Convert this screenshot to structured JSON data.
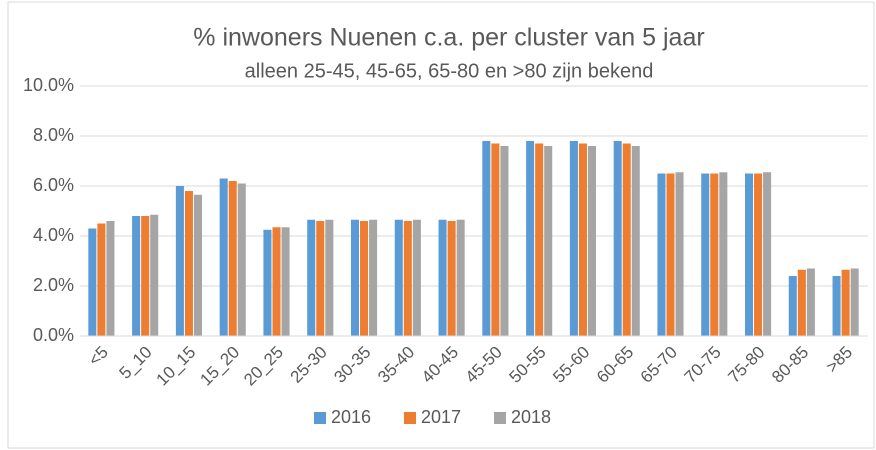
{
  "chart_data": {
    "type": "bar",
    "title": "% inwoners Nuenen c.a. per cluster van 5 jaar",
    "subtitle": "alleen 25-45, 45-65, 65-80 en >80 zijn bekend",
    "categories": [
      "<5",
      "5_10",
      "10_15",
      "15_20",
      "20_25",
      "25-30",
      "30-35",
      "35-40",
      "40-45",
      "45-50",
      "50-55",
      "55-60",
      "60-65",
      "65-70",
      "70-75",
      "75-80",
      "80-85",
      ">85"
    ],
    "series": [
      {
        "name": "2016",
        "color": "#5b9bd5",
        "values": [
          4.3,
          4.8,
          6.0,
          6.3,
          4.25,
          4.65,
          4.65,
          4.65,
          4.65,
          7.8,
          7.8,
          7.8,
          7.8,
          6.5,
          6.5,
          6.5,
          2.4,
          2.4
        ]
      },
      {
        "name": "2017",
        "color": "#ed7d31",
        "values": [
          4.5,
          4.8,
          5.8,
          6.2,
          4.35,
          4.6,
          4.6,
          4.6,
          4.6,
          7.7,
          7.7,
          7.7,
          7.7,
          6.5,
          6.5,
          6.5,
          2.65,
          2.65
        ]
      },
      {
        "name": "2018",
        "color": "#a5a5a5",
        "values": [
          4.6,
          4.85,
          5.65,
          6.1,
          4.35,
          4.65,
          4.65,
          4.65,
          4.65,
          7.6,
          7.6,
          7.6,
          7.6,
          6.55,
          6.55,
          6.55,
          2.7,
          2.7
        ]
      }
    ],
    "ylim": [
      0,
      10
    ],
    "yticks": [
      {
        "value": 0,
        "label": "0.0%"
      },
      {
        "value": 2,
        "label": "2.0%"
      },
      {
        "value": 4,
        "label": "4.0%"
      },
      {
        "value": 6,
        "label": "6.0%"
      },
      {
        "value": 8,
        "label": "8.0%"
      },
      {
        "value": 10,
        "label": "10.0%"
      }
    ],
    "grid": true,
    "legend": "bottom"
  }
}
